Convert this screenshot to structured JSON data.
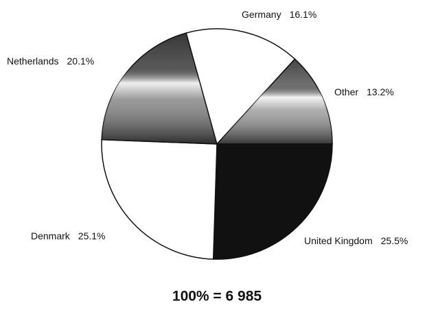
{
  "chart_data": {
    "type": "pie",
    "categories": [
      "United Kingdom",
      "Denmark",
      "Netherlands",
      "Germany",
      "Other"
    ],
    "values": [
      25.5,
      25.1,
      20.1,
      16.1,
      13.2
    ],
    "value_labels": [
      "25.5%",
      "25.1%",
      "20.1%",
      "16.1%",
      "13.2%"
    ],
    "colors": [
      "#111111",
      "#ffffff",
      "#6e6e6e",
      "#ffffff",
      "#8c8c8c"
    ],
    "total_label": "100% = 6 985"
  }
}
